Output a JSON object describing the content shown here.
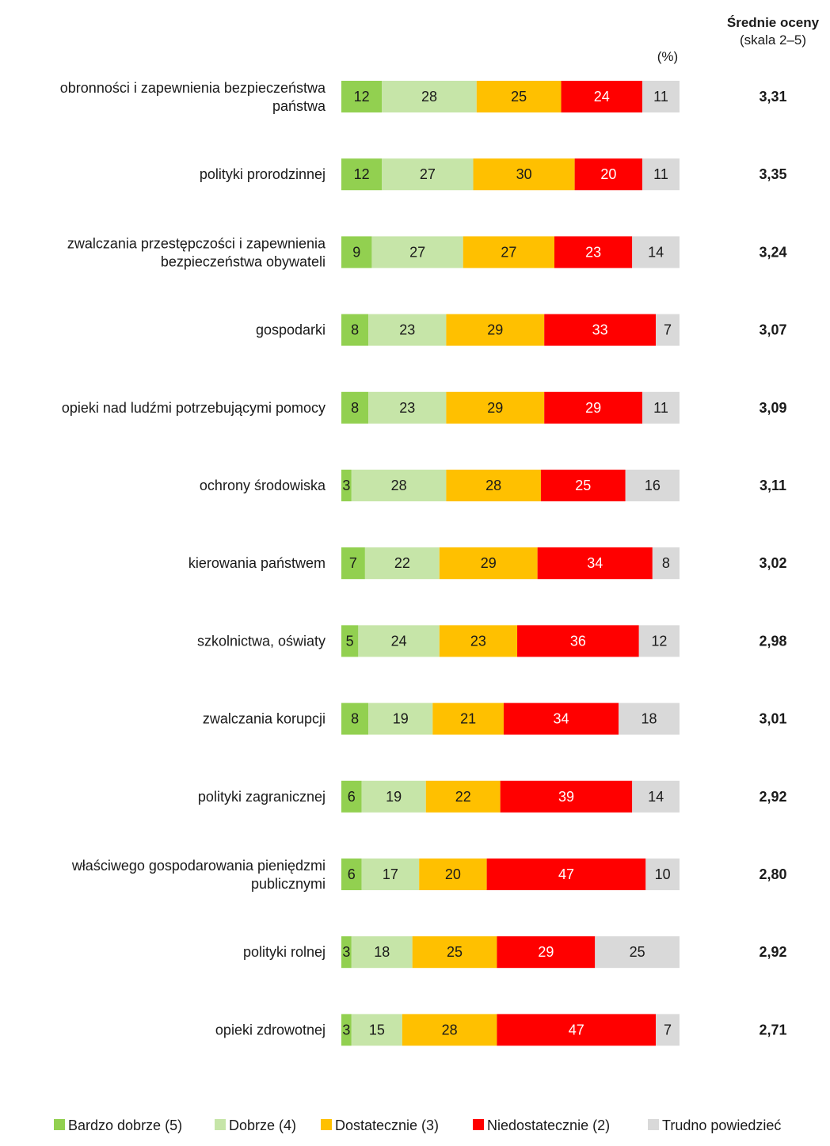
{
  "chart_data": {
    "type": "bar",
    "orientation": "horizontal",
    "stacked": true,
    "unit_label": "(%)",
    "avg_header": {
      "title": "Średnie oceny",
      "subtitle": "(skala 2–5)"
    },
    "categories": [
      [
        "obronności i zapewnienia bezpieczeństwa",
        "państwa"
      ],
      [
        "polityki prorodzinnej"
      ],
      [
        "zwalczania przestępczości i zapewnienia",
        "bezpieczeństwa obywateli"
      ],
      [
        "gospodarki"
      ],
      [
        "opieki nad ludźmi potrzebującymi pomocy"
      ],
      [
        "ochrony środowiska"
      ],
      [
        "kierowania państwem"
      ],
      [
        "szkolnictwa, oświaty"
      ],
      [
        "zwalczania korupcji"
      ],
      [
        "polityki zagranicznej"
      ],
      [
        "właściwego gospodarowania pieniędzmi",
        "publicznymi"
      ],
      [
        "polityki rolnej"
      ],
      [
        "opieki zdrowotnej"
      ]
    ],
    "series": [
      {
        "name": "Bardzo dobrze (5)",
        "color": "#92d050",
        "label_color": "#1a1a1a",
        "values": [
          12,
          12,
          9,
          8,
          8,
          3,
          7,
          5,
          8,
          6,
          6,
          3,
          3
        ]
      },
      {
        "name": "Dobrze (4)",
        "color": "#c6e5a8",
        "label_color": "#1a1a1a",
        "values": [
          28,
          27,
          27,
          23,
          23,
          28,
          22,
          24,
          19,
          19,
          17,
          18,
          15
        ]
      },
      {
        "name": "Dostatecznie (3)",
        "color": "#ffc000",
        "label_color": "#1a1a1a",
        "values": [
          25,
          30,
          27,
          29,
          29,
          28,
          29,
          23,
          21,
          22,
          20,
          25,
          28
        ]
      },
      {
        "name": "Niedostatecznie (2)",
        "color": "#ff0000",
        "label_color": "#ffffff",
        "values": [
          24,
          20,
          23,
          33,
          29,
          25,
          34,
          36,
          34,
          39,
          47,
          29,
          47
        ]
      },
      {
        "name": "Trudno powiedzieć",
        "color": "#d9d9d9",
        "label_color": "#1a1a1a",
        "values": [
          11,
          11,
          14,
          7,
          11,
          16,
          8,
          12,
          18,
          14,
          10,
          25,
          7
        ]
      }
    ],
    "averages": [
      "3,31",
      "3,35",
      "3,24",
      "3,07",
      "3,09",
      "3,11",
      "3,02",
      "2,98",
      "3,01",
      "2,92",
      "2,80",
      "2,92",
      "2,71"
    ],
    "legend_position": "bottom",
    "grid": false
  }
}
